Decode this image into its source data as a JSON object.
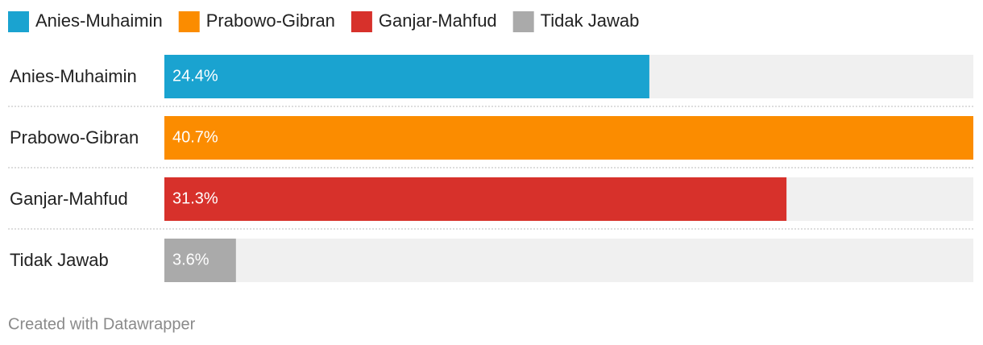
{
  "chart_data": {
    "type": "bar",
    "categories": [
      "Anies-Muhaimin",
      "Prabowo-Gibran",
      "Ganjar-Mahfud",
      "Tidak Jawab"
    ],
    "values": [
      24.4,
      40.7,
      31.3,
      3.6
    ],
    "value_labels": [
      "24.4%",
      "40.7%",
      "31.3%",
      "3.6%"
    ],
    "colors": [
      "#1aa3d0",
      "#fb8c00",
      "#d7312b",
      "#aaaaaa"
    ],
    "xlim": [
      0,
      40.7
    ],
    "credit": "Created with Datawrapper"
  }
}
